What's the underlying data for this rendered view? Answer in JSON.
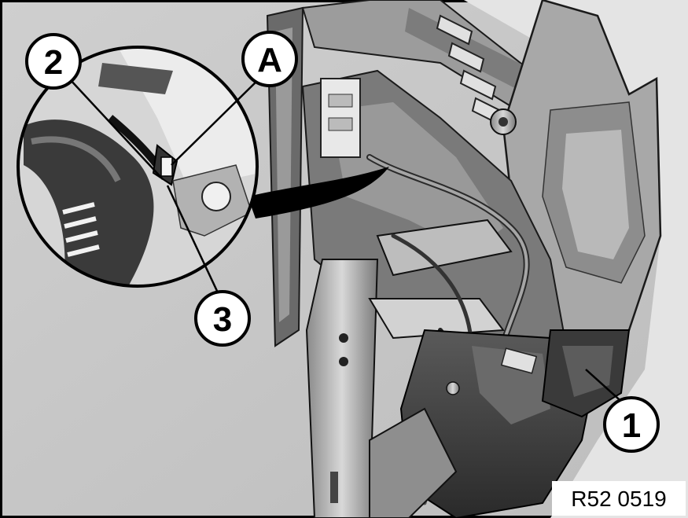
{
  "figure": {
    "reference_code": "R52 0519",
    "callouts": {
      "one": "1",
      "two": "2",
      "three": "3",
      "a": "A"
    },
    "colors": {
      "background": "#c9c9c9",
      "line": "#000000",
      "callout_fill": "#ffffff"
    }
  }
}
